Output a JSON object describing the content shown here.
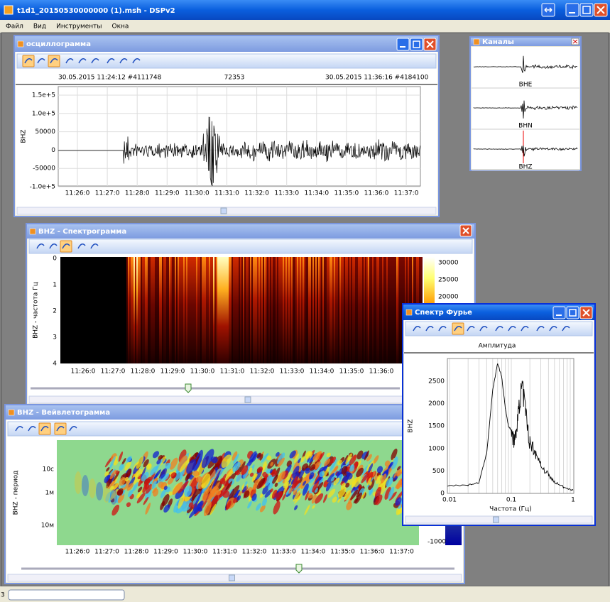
{
  "window": {
    "title": "t1d1_20150530000000 (1).msh - DSPv2",
    "menu": [
      "Файл",
      "Вид",
      "Инструменты",
      "Окна"
    ]
  },
  "oscillogram": {
    "title": "осциллограмма",
    "header": {
      "start": "30.05.2015 11:24:12 #4111748",
      "count": "72353",
      "end": "30.05.2015 11:36:16 #4184100"
    },
    "y_label": "BHZ",
    "y_ticks": [
      "1.5e+5",
      "1.0e+5",
      "50000",
      "0",
      "-50000",
      "-1.0e+5"
    ],
    "x_ticks": [
      "11:26:0",
      "11:27:0",
      "11:28:0",
      "11:29:0",
      "11:30:0",
      "11:31:0",
      "11:32:0",
      "11:33:0",
      "11:34:0",
      "11:35:0",
      "11:36:0",
      "11:37:0"
    ]
  },
  "channels": {
    "title": "Каналы",
    "items": [
      "BHE",
      "BHN",
      "BHZ"
    ]
  },
  "spectrogram": {
    "title": "BHZ - Спектрограмма",
    "y_label": "BHZ - частота Гц",
    "y_ticks": [
      "0",
      "1",
      "2",
      "3",
      "4"
    ],
    "x_ticks": [
      "11:26:0",
      "11:27:0",
      "11:28:0",
      "11:29:0",
      "11:30:0",
      "11:31:0",
      "11:32:0",
      "11:33:0",
      "11:34:0",
      "11:35:0",
      "11:36:0"
    ],
    "colorbar_ticks": [
      "30000",
      "25000",
      "20000"
    ]
  },
  "wavelet": {
    "title": "BHZ - Вейвлетограмма",
    "y_label": "BHZ - период",
    "y_ticks": [
      "10с",
      "1м",
      "10м"
    ],
    "x_ticks": [
      "11:26:0",
      "11:27:0",
      "11:28:0",
      "11:29:0",
      "11:30:0",
      "11:31:0",
      "11:32:0",
      "11:33:0",
      "11:34:0",
      "11:35:0",
      "11:36:0",
      "11:37:0"
    ],
    "colorbar_ticks": [
      "-1000"
    ]
  },
  "fourier": {
    "title": "Спектр Фурье",
    "header": "Амплитуда",
    "y_label": "BHZ",
    "y_ticks": [
      "2500",
      "2000",
      "1500",
      "1000",
      "500",
      "0"
    ],
    "x_ticks": [
      "0.01",
      "0.1",
      "1"
    ],
    "x_label": "Частота (Гц)"
  },
  "status": {
    "text": "3"
  }
}
